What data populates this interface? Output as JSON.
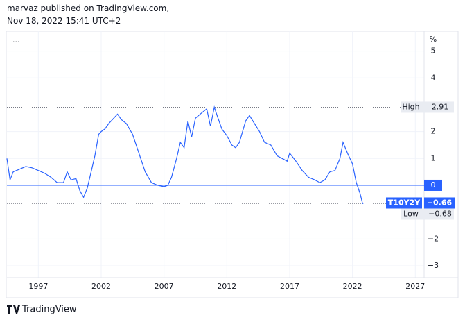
{
  "header": {
    "author_line": "marvaz published on TradingView.com,",
    "date_line": "Nov 18, 2022 15:41 UTC+2"
  },
  "chart_data": {
    "type": "line",
    "menu": "...",
    "unit": "%",
    "x": [
      1994.5,
      1994.75,
      1995.0,
      1995.5,
      1996.0,
      1996.5,
      1997.0,
      1997.5,
      1998.0,
      1998.5,
      1999.0,
      1999.3,
      1999.6,
      2000.0,
      2000.3,
      2000.6,
      2000.9,
      2001.2,
      2001.5,
      2001.8,
      2002.0,
      2002.3,
      2002.6,
      2003.0,
      2003.3,
      2003.6,
      2004.0,
      2004.5,
      2005.0,
      2005.5,
      2006.0,
      2006.5,
      2007.0,
      2007.3,
      2007.6,
      2008.0,
      2008.3,
      2008.6,
      2008.9,
      2009.2,
      2009.5,
      2010.0,
      2010.4,
      2010.7,
      2011.0,
      2011.3,
      2011.6,
      2012.0,
      2012.4,
      2012.7,
      2013.0,
      2013.5,
      2013.8,
      2014.2,
      2014.6,
      2015.0,
      2015.5,
      2016.0,
      2016.4,
      2016.8,
      2017.0,
      2017.5,
      2018.0,
      2018.5,
      2019.0,
      2019.4,
      2019.8,
      2020.2,
      2020.6,
      2021.0,
      2021.25,
      2021.6,
      2022.0,
      2022.3,
      2022.6,
      2022.8,
      2022.88
    ],
    "series": [
      {
        "name": "T10Y2Y",
        "color": "#2962ff",
        "values": [
          1.0,
          0.2,
          0.5,
          0.6,
          0.7,
          0.65,
          0.55,
          0.45,
          0.3,
          0.1,
          0.1,
          0.5,
          0.2,
          0.25,
          -0.2,
          -0.45,
          -0.1,
          0.5,
          1.1,
          1.9,
          2.0,
          2.1,
          2.3,
          2.5,
          2.65,
          2.45,
          2.3,
          1.9,
          1.2,
          0.5,
          0.1,
          0.0,
          -0.05,
          0.0,
          0.3,
          1.0,
          1.6,
          1.4,
          2.4,
          1.8,
          2.5,
          2.7,
          2.85,
          2.2,
          2.91,
          2.5,
          2.1,
          1.85,
          1.5,
          1.4,
          1.6,
          2.4,
          2.6,
          2.3,
          2.0,
          1.6,
          1.5,
          1.1,
          1.0,
          0.9,
          1.2,
          0.9,
          0.55,
          0.3,
          0.2,
          0.1,
          0.2,
          0.5,
          0.55,
          1.0,
          1.6,
          1.2,
          0.8,
          0.1,
          -0.3,
          -0.68,
          -0.66
        ]
      }
    ],
    "last_label": {
      "value": -0.66,
      "label": "−0.66"
    },
    "xlim": [
      1994.5,
      2027.7
    ],
    "xticks": [
      1997,
      2002,
      2007,
      2012,
      2017,
      2022,
      2027
    ],
    "ylim": [
      -3.44,
      5.74
    ],
    "yticks": [
      5,
      4,
      2,
      1,
      {
        "value": -2,
        "label": "−2"
      },
      {
        "value": -3,
        "label": "−3"
      }
    ],
    "baseline": 0,
    "high": {
      "name": "High",
      "value": 2.91
    },
    "low": {
      "name": "Low",
      "value": {
        "value": -0.68,
        "label": "−0.68"
      }
    },
    "grid": true
  },
  "footer": {
    "brand": "TradingView"
  }
}
